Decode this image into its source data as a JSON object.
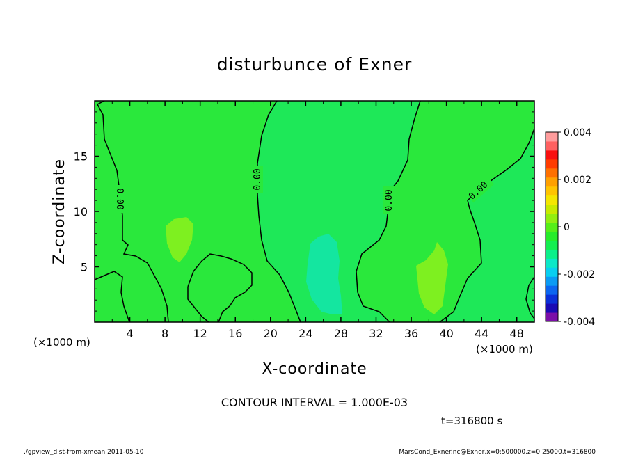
{
  "chart_data": {
    "type": "contour",
    "title": "disturbunce of Exner",
    "xlabel": "X-coordinate",
    "ylabel": "Z-coordinate",
    "x_unit": "(×1000 m)",
    "y_unit": "(×1000 m)",
    "xlim": [
      0,
      50
    ],
    "ylim": [
      0,
      20
    ],
    "x_ticks": [
      "4",
      "8",
      "12",
      "16",
      "20",
      "24",
      "28",
      "32",
      "36",
      "40",
      "44",
      "48"
    ],
    "y_ticks": [
      "5",
      "10",
      "15"
    ],
    "contour_interval_text": "CONTOUR INTERVAL = 1.000E-03",
    "contour_labels": [
      "0.00",
      "0.00",
      "0.00",
      "0.00"
    ],
    "time_text": "t=316800 s",
    "colorbar": {
      "min": -0.004,
      "max": 0.004,
      "tick_labels": [
        "0.004",
        "0.002",
        "0",
        "-0.002",
        "-0.004"
      ],
      "colors": [
        "#7b0fa8",
        "#1a0ab4",
        "#0a30d8",
        "#0b66f0",
        "#0a9bf4",
        "#08cff0",
        "#0be8c8",
        "#0bf08a",
        "#14ee50",
        "#26ec2a",
        "#56ee18",
        "#92ee10",
        "#c8ea00",
        "#f4e600",
        "#ffc400",
        "#ffa000",
        "#ff7000",
        "#ff3c00",
        "#f81010",
        "#ff6060",
        "#ff9c9c"
      ]
    },
    "regions": [
      {
        "name": "near-zero-positive",
        "color": "#2ae83c"
      },
      {
        "name": "near-zero",
        "color": "#1ee858"
      },
      {
        "name": "weak-positive",
        "color": "#7ef020"
      },
      {
        "name": "weak-negative",
        "color": "#14e6a0"
      }
    ]
  },
  "footer": {
    "left": "./gpview_dist-from-xmean  2011-05-10",
    "right": "MarsCond_Exner.nc@Exner,x=0:500000,z=0:25000,t=316800"
  }
}
